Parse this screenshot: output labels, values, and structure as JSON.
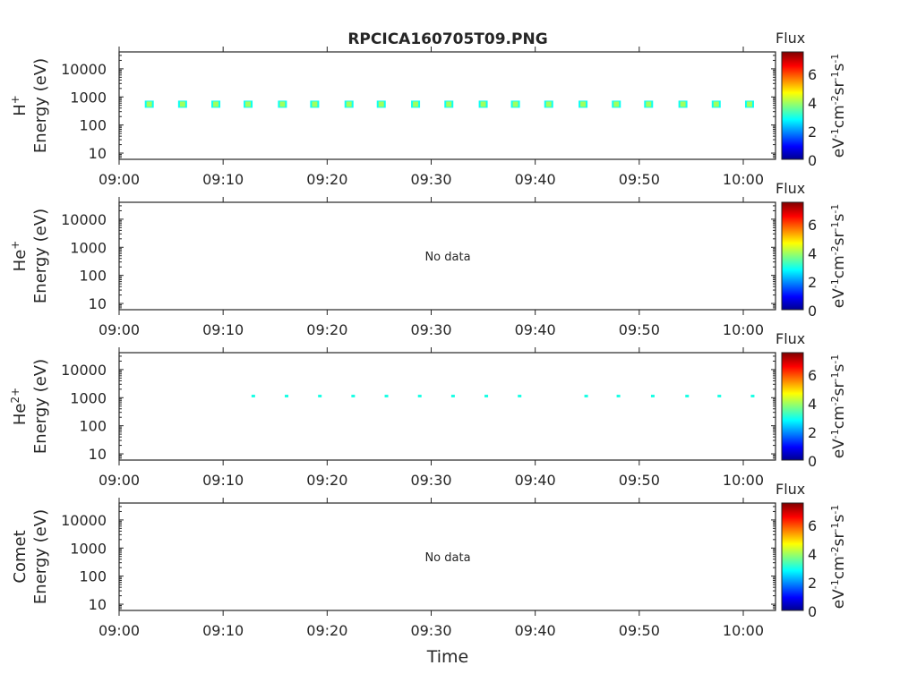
{
  "chart_data": {
    "type": "heatmap",
    "title": "RPCICA160705T09.PNG",
    "xlabel": "Time",
    "x_ticks": [
      "09:00",
      "09:10",
      "09:20",
      "09:30",
      "09:40",
      "09:50",
      "10:00"
    ],
    "x_range_minutes_after_0900": [
      0,
      63.1
    ],
    "y_scale": "log",
    "y_ticks": [
      "10",
      "100",
      "1000",
      "10000"
    ],
    "y_range": [
      6,
      40000
    ],
    "colorbar": {
      "title": "Flux",
      "label": "eV-1cm-2sr-1s-1",
      "ticks": [
        "0",
        "2",
        "4",
        "6"
      ],
      "range": [
        0,
        7.5
      ],
      "colormap": "jet"
    },
    "no_data_text": "No data",
    "panels": [
      {
        "species": "H",
        "charge": "+",
        "ylabel": "Energy (eV)",
        "has_data": true,
        "points": {
          "time_min": [
            2.9,
            6.1,
            9.3,
            12.4,
            15.7,
            18.8,
            22.1,
            25.2,
            28.5,
            31.7,
            35.0,
            38.1,
            41.3,
            44.6,
            47.8,
            50.9,
            54.2,
            57.4,
            60.6
          ],
          "energy_ev": 550,
          "flux": 4
        }
      },
      {
        "species": "He",
        "charge": "+",
        "ylabel": "Energy (eV)",
        "has_data": false
      },
      {
        "species": "He",
        "charge": "2+",
        "ylabel": "Energy (eV)",
        "has_data": true,
        "points": {
          "time_min": [
            12.9,
            16.1,
            19.3,
            22.5,
            25.7,
            28.9,
            32.1,
            35.3,
            38.5,
            44.9,
            48.0,
            51.3,
            54.6,
            57.7,
            60.9
          ],
          "energy_ev": 1100,
          "flux": 3
        }
      },
      {
        "species": "Comet",
        "charge": "",
        "ylabel": "Energy (eV)",
        "has_data": false
      }
    ]
  }
}
